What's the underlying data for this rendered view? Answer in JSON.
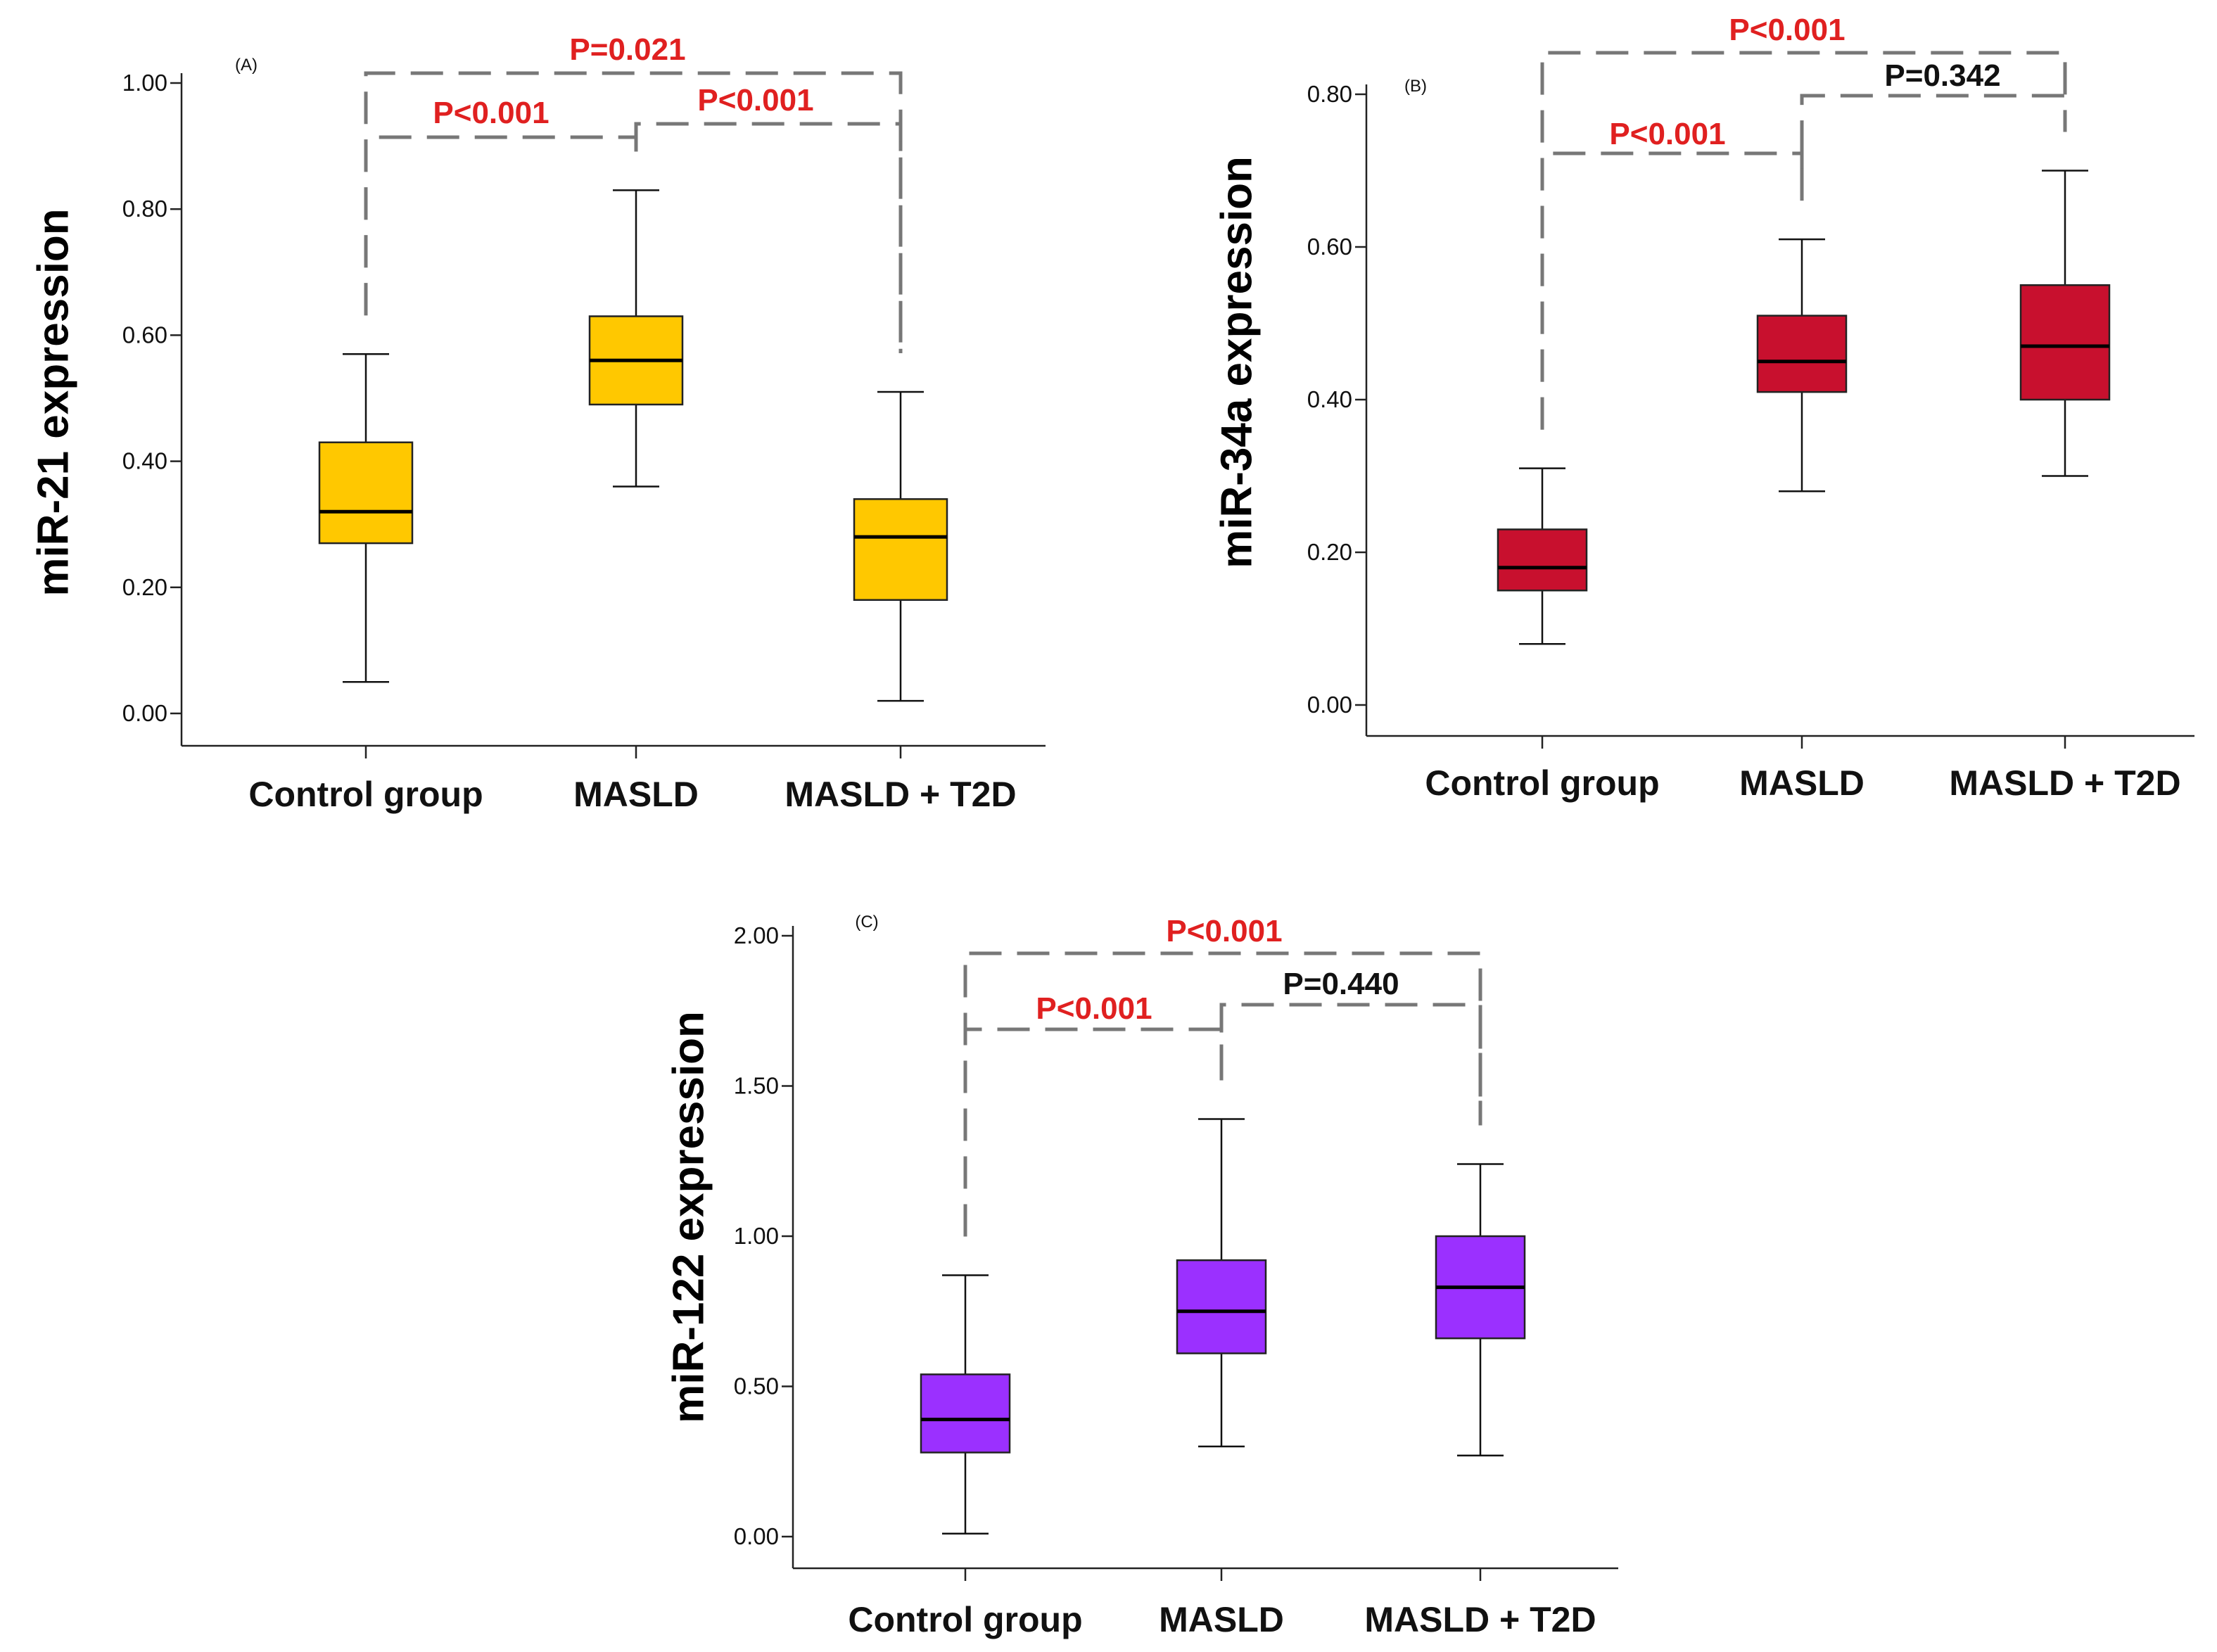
{
  "chart_data": [
    {
      "type": "box",
      "panel_label": "(A)",
      "ylabel": "miR-21 expression",
      "categories": [
        "Control group",
        "MASLD",
        "MASLD + T2D"
      ],
      "ylim": [
        0,
        1.0
      ],
      "yticks": [
        "0.00",
        "0.20",
        "0.40",
        "0.60",
        "0.80",
        "1.00"
      ],
      "ytick_values": [
        0,
        0.2,
        0.4,
        0.6,
        0.8,
        1.0
      ],
      "box_color": "#ffc800",
      "boxes": [
        {
          "whisker_low": 0.05,
          "q1": 0.27,
          "median": 0.32,
          "q3": 0.43,
          "whisker_high": 0.57
        },
        {
          "whisker_low": 0.36,
          "q1": 0.49,
          "median": 0.56,
          "q3": 0.63,
          "whisker_high": 0.83
        },
        {
          "whisker_low": 0.02,
          "q1": 0.18,
          "median": 0.28,
          "q3": 0.34,
          "whisker_high": 0.51
        }
      ],
      "comparisons": [
        {
          "from": 0,
          "to": 1,
          "label": "P<0.001",
          "color": "#e02020"
        },
        {
          "from": 1,
          "to": 2,
          "label": "P<0.001",
          "color": "#e02020"
        },
        {
          "from": 0,
          "to": 2,
          "label": "P=0.021",
          "color": "#e02020"
        }
      ]
    },
    {
      "type": "box",
      "panel_label": "(B)",
      "ylabel": "miR-34a expression",
      "categories": [
        "Control group",
        "MASLD",
        "MASLD + T2D"
      ],
      "ylim": [
        0,
        0.8
      ],
      "yticks": [
        "0.00",
        "0.20",
        "0.40",
        "0.60",
        "0.80"
      ],
      "ytick_values": [
        0,
        0.2,
        0.4,
        0.6,
        0.8
      ],
      "box_color": "#c8102e",
      "boxes": [
        {
          "whisker_low": 0.08,
          "q1": 0.15,
          "median": 0.18,
          "q3": 0.23,
          "whisker_high": 0.31
        },
        {
          "whisker_low": 0.28,
          "q1": 0.41,
          "median": 0.45,
          "q3": 0.51,
          "whisker_high": 0.61
        },
        {
          "whisker_low": 0.3,
          "q1": 0.4,
          "median": 0.47,
          "q3": 0.55,
          "whisker_high": 0.7
        }
      ],
      "comparisons": [
        {
          "from": 0,
          "to": 1,
          "label": "P<0.001",
          "color": "#e02020"
        },
        {
          "from": 1,
          "to": 2,
          "label": "P=0.342",
          "color": "#111111"
        },
        {
          "from": 0,
          "to": 2,
          "label": "P<0.001",
          "color": "#e02020"
        }
      ]
    },
    {
      "type": "box",
      "panel_label": "(C)",
      "ylabel": "miR-122 expression",
      "categories": [
        "Control group",
        "MASLD",
        "MASLD + T2D"
      ],
      "ylim": [
        0,
        2.0
      ],
      "yticks": [
        "0.00",
        "0.50",
        "1.00",
        "1.50",
        "2.00"
      ],
      "ytick_values": [
        0,
        0.5,
        1.0,
        1.5,
        2.0
      ],
      "box_color": "#9b30ff",
      "boxes": [
        {
          "whisker_low": 0.01,
          "q1": 0.28,
          "median": 0.39,
          "q3": 0.54,
          "whisker_high": 0.87
        },
        {
          "whisker_low": 0.3,
          "q1": 0.61,
          "median": 0.75,
          "q3": 0.92,
          "whisker_high": 1.39
        },
        {
          "whisker_low": 0.27,
          "q1": 0.66,
          "median": 0.83,
          "q3": 1.0,
          "whisker_high": 1.24
        }
      ],
      "comparisons": [
        {
          "from": 0,
          "to": 1,
          "label": "P<0.001",
          "color": "#e02020"
        },
        {
          "from": 1,
          "to": 2,
          "label": "P=0.440",
          "color": "#111111"
        },
        {
          "from": 0,
          "to": 2,
          "label": "P<0.001",
          "color": "#e02020"
        }
      ]
    }
  ]
}
